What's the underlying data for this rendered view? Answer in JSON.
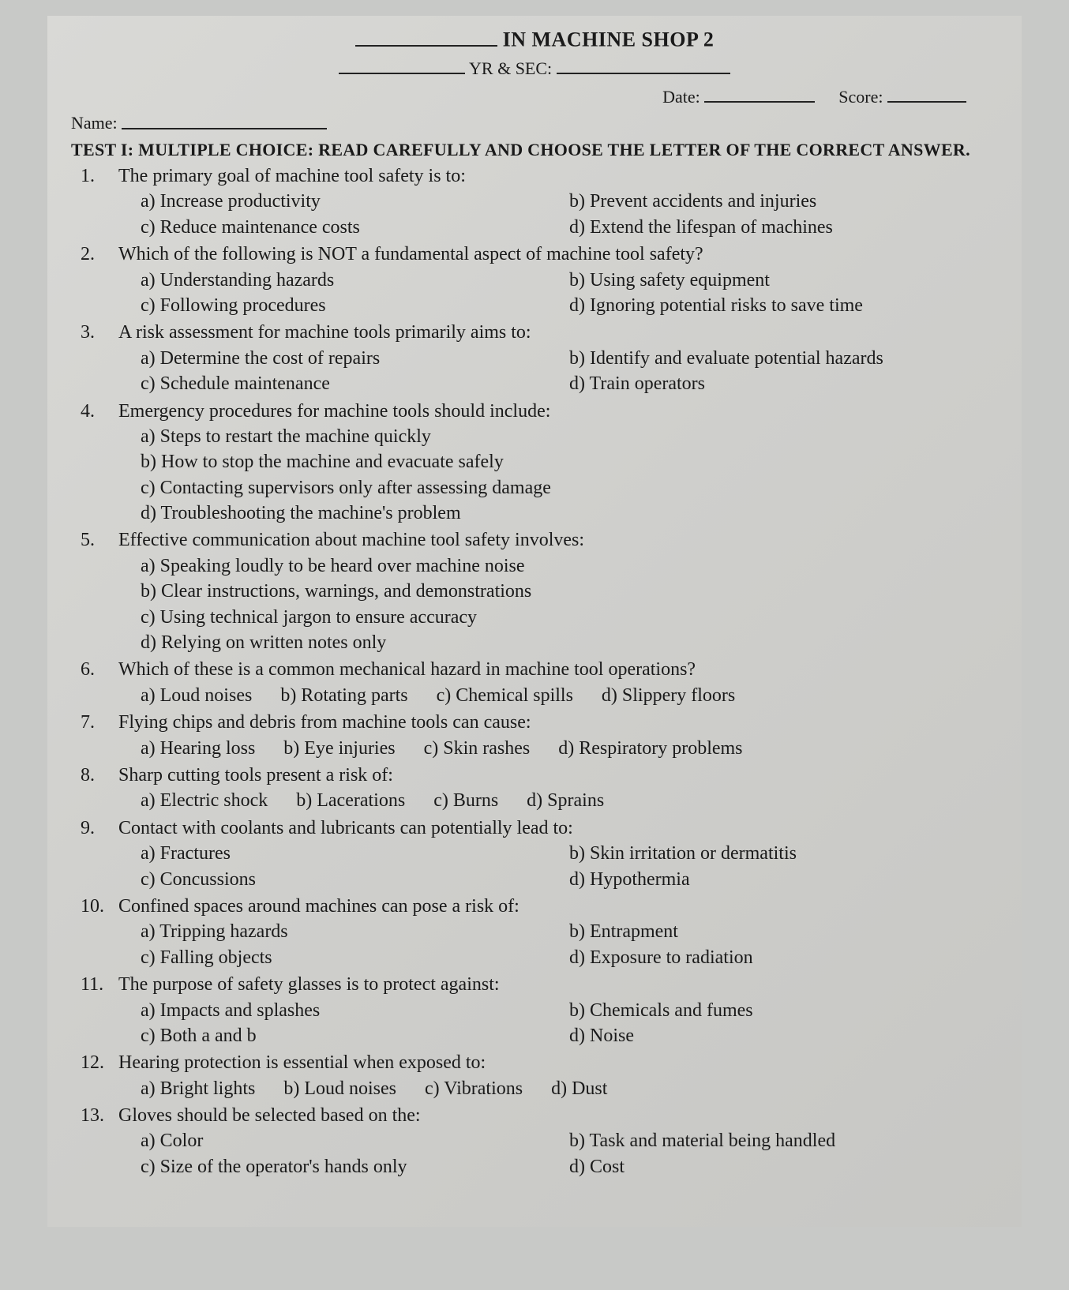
{
  "header": {
    "title_suffix": "IN MACHINE SHOP 2",
    "yr_sec_label": "YR & SEC:",
    "date_label": "Date:",
    "score_label": "Score:",
    "name_label": "Name:"
  },
  "test": {
    "label": "TEST I: MULTIPLE CHOICE: READ CAREFULLY AND CHOOSE THE LETTER OF THE CORRECT ANSWER."
  },
  "questions": [
    {
      "num": "1.",
      "text": "The primary goal of machine tool safety is to:",
      "layout": "2col",
      "options": [
        "a) Increase productivity",
        "b) Prevent accidents and injuries",
        "c) Reduce maintenance costs",
        "d) Extend the lifespan of machines"
      ]
    },
    {
      "num": "2.",
      "text": "Which of the following is NOT a fundamental aspect of machine tool safety?",
      "layout": "2col",
      "options": [
        "a) Understanding hazards",
        "b) Using safety equipment",
        "c) Following procedures",
        "d) Ignoring potential risks to save time"
      ]
    },
    {
      "num": "3.",
      "text": "A risk assessment for machine tools primarily aims to:",
      "layout": "2col",
      "options": [
        "a) Determine the cost of repairs",
        "b) Identify and evaluate potential hazards",
        "c) Schedule maintenance",
        "d) Train operators"
      ]
    },
    {
      "num": "4.",
      "text": "Emergency procedures for machine tools should include:",
      "layout": "1col",
      "options": [
        "a) Steps to restart the machine quickly",
        "b) How to stop the machine and evacuate safely",
        "c) Contacting supervisors only after assessing damage",
        "d) Troubleshooting the machine's problem"
      ]
    },
    {
      "num": "5.",
      "text": "Effective communication about machine tool safety involves:",
      "layout": "1col",
      "options": [
        "a) Speaking loudly to be heard over machine noise",
        "b) Clear instructions, warnings, and demonstrations",
        "c) Using technical jargon to ensure accuracy",
        "d) Relying on written notes only"
      ]
    },
    {
      "num": "6.",
      "text": "Which of these is a common mechanical hazard in machine tool operations?",
      "layout": "inline",
      "options": [
        "a) Loud noises",
        "b) Rotating parts",
        "c) Chemical spills",
        "d) Slippery floors"
      ]
    },
    {
      "num": "7.",
      "text": "Flying chips and debris from machine tools can cause:",
      "layout": "inline",
      "options": [
        "a) Hearing loss",
        "b) Eye injuries",
        "c) Skin rashes",
        "d) Respiratory problems"
      ]
    },
    {
      "num": "8.",
      "text": "Sharp cutting tools present a risk of:",
      "layout": "inline",
      "options": [
        "a) Electric shock",
        "b) Lacerations",
        "c) Burns",
        "d) Sprains"
      ]
    },
    {
      "num": "9.",
      "text": "Contact with coolants and lubricants can potentially lead to:",
      "layout": "2col",
      "options": [
        "a) Fractures",
        "b) Skin irritation or dermatitis",
        "c) Concussions",
        "d) Hypothermia"
      ]
    },
    {
      "num": "10.",
      "text": "Confined spaces around machines can pose a risk of:",
      "layout": "2col",
      "options": [
        "a) Tripping hazards",
        "b) Entrapment",
        "c) Falling objects",
        "d) Exposure to radiation"
      ]
    },
    {
      "num": "11.",
      "text": "The purpose of safety glasses is to protect against:",
      "layout": "2col",
      "options": [
        "a) Impacts and splashes",
        "b) Chemicals and fumes",
        "c) Both a and b",
        "d) Noise"
      ]
    },
    {
      "num": "12.",
      "text": "Hearing protection is essential when exposed to:",
      "layout": "inline",
      "options": [
        "a) Bright lights",
        "b) Loud noises",
        "c) Vibrations",
        "d) Dust"
      ]
    },
    {
      "num": "13.",
      "text": "Gloves should be selected based on the:",
      "layout": "2col",
      "options": [
        "a) Color",
        "b) Task and material being handled",
        "c) Size of the operator's hands only",
        "d) Cost"
      ]
    }
  ]
}
